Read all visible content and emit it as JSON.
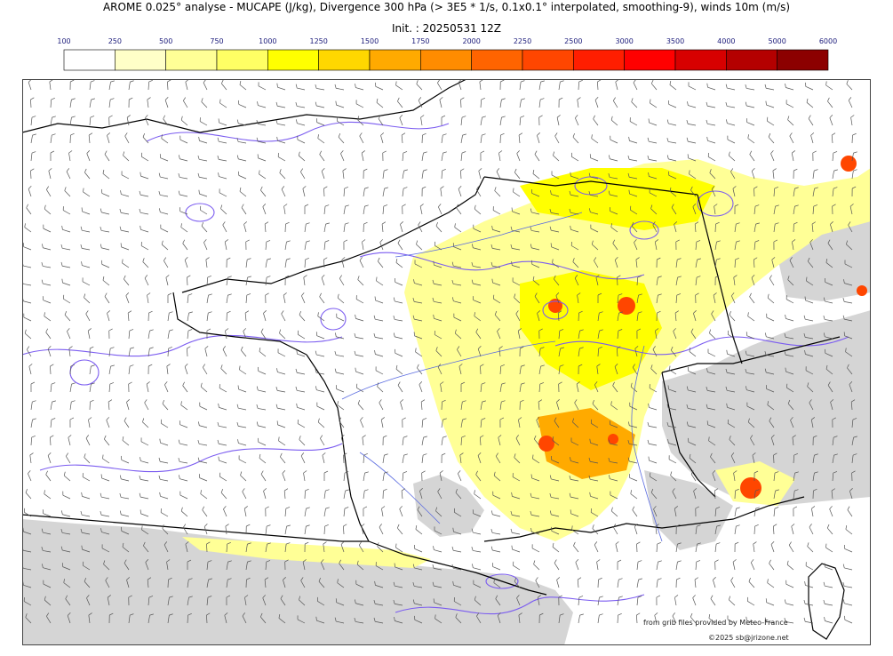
{
  "header": {
    "title": "AROME 0.025° analyse - MUCAPE (J/kg), Divergence 300 hPa (> 3E5 * 1/s, 0.1x0.1° interpolated, smoothing-9), winds 10m (m/s)",
    "init": "Init. : 20250531 12Z"
  },
  "colorbar": {
    "labels": [
      "100",
      "250",
      "500",
      "750",
      "1000",
      "1250",
      "1500",
      "1750",
      "2000",
      "2250",
      "2500",
      "3000",
      "3500",
      "4000",
      "5000",
      "6000"
    ],
    "colors": [
      "#ffffff",
      "#ffffc8",
      "#ffff96",
      "#ffff64",
      "#ffff00",
      "#ffd700",
      "#ffaa00",
      "#ff8c00",
      "#ff6400",
      "#ff4600",
      "#ff1e00",
      "#ff0000",
      "#d70000",
      "#b40000",
      "#8c0000",
      "#640000"
    ]
  },
  "map": {
    "colors": {
      "land": "#ffffff",
      "relief": "#d3d3d3",
      "cape_low": "#ffff96",
      "cape_mid": "#ffff00",
      "cape_high": "#ffaa00",
      "cape_max": "#ff4600",
      "divergence": "#7b5cf0",
      "rivers": "#5a6be0",
      "coast": "#000000",
      "barbs": "#555555"
    }
  },
  "credits": {
    "line1": "from grib files provided by Meteo-France",
    "line2": "©2025 sb@jrizone.net"
  }
}
